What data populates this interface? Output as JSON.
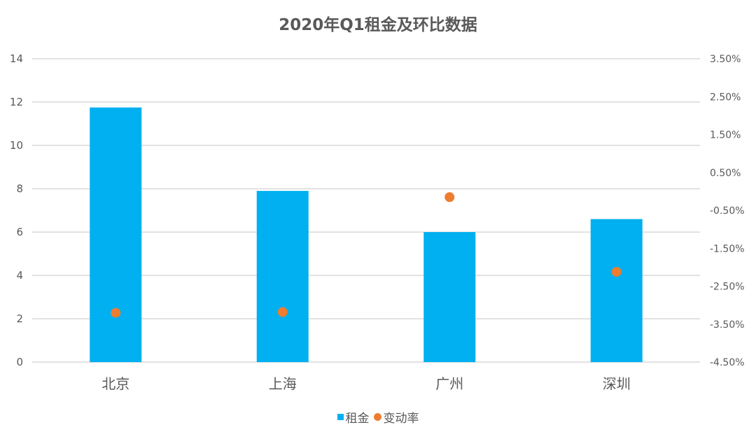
{
  "chart_data": {
    "type": "bar",
    "title": "2020年Q1租金及环比数据",
    "categories": [
      "北京",
      "上海",
      "广州",
      "深圳"
    ],
    "series": [
      {
        "name": "租金",
        "kind": "bar",
        "axis": "left",
        "color": "#00B0F0",
        "values": [
          11.75,
          7.9,
          6.0,
          6.6
        ]
      },
      {
        "name": "变动率",
        "kind": "scatter",
        "axis": "right",
        "color": "#ED7D31",
        "values": [
          -3.2,
          -3.18,
          -0.15,
          -2.12
        ]
      }
    ],
    "left_axis": {
      "ylim": [
        0,
        14
      ],
      "ticks": [
        0,
        2,
        4,
        6,
        8,
        10,
        12,
        14
      ],
      "tick_labels": [
        "0",
        "2",
        "4",
        "6",
        "8",
        "10",
        "12",
        "14"
      ]
    },
    "right_axis": {
      "ylim": [
        -4.5,
        3.5
      ],
      "ticks": [
        -4.5,
        -3.5,
        -2.5,
        -1.5,
        -0.5,
        0.5,
        1.5,
        2.5,
        3.5
      ],
      "tick_labels": [
        "-4.50%",
        "-3.50%",
        "-2.50%",
        "-1.50%",
        "-0.50%",
        "0.50%",
        "1.50%",
        "2.50%",
        "3.50%"
      ]
    },
    "grid": true,
    "legend_position": "bottom-center"
  },
  "colors": {
    "grid": "#D9D9D9",
    "text": "#595959"
  }
}
